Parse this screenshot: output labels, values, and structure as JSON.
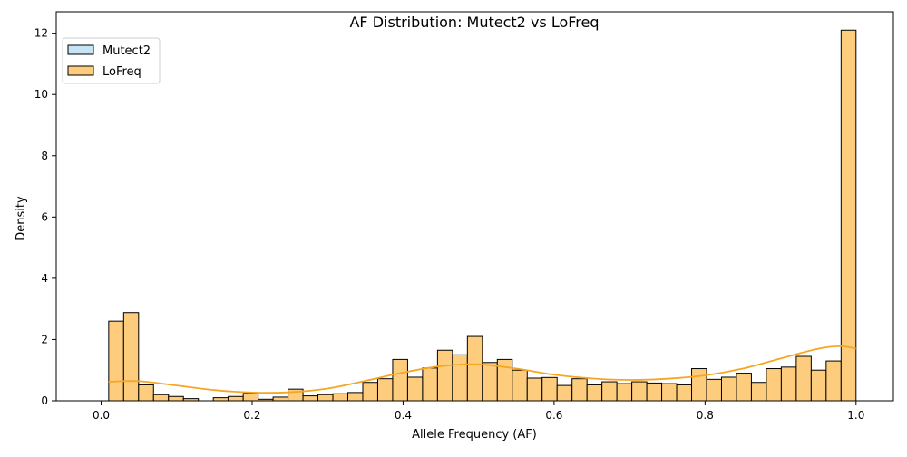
{
  "chart_data": {
    "type": "bar",
    "title": "AF Distribution: Mutect2 vs LoFreq",
    "xlabel": "Allele Frequency (AF)",
    "ylabel": "Density",
    "xlim": [
      -0.0595,
      1.0495
    ],
    "ylim": [
      0,
      12.7
    ],
    "x_ticks": [
      0.0,
      0.2,
      0.4,
      0.6,
      0.8,
      1.0
    ],
    "x_tick_labels": [
      "0.0",
      "0.2",
      "0.4",
      "0.6",
      "0.8",
      "1.0"
    ],
    "y_ticks": [
      0,
      2,
      4,
      6,
      8,
      10,
      12
    ],
    "y_tick_labels": [
      "0",
      "2",
      "4",
      "6",
      "8",
      "10",
      "12"
    ],
    "grid": false,
    "legend_position": "top-left",
    "bin_start": 0.01,
    "bin_width": 0.0198,
    "series": [
      {
        "name": "Mutect2",
        "color": "#c5e4f5",
        "values": []
      },
      {
        "name": "LoFreq",
        "color": "#fdcd7d",
        "kde_color": "#f5a623",
        "values": [
          2.6,
          2.88,
          0.52,
          0.2,
          0.14,
          0.07,
          0.0,
          0.1,
          0.14,
          0.24,
          0.05,
          0.12,
          0.38,
          0.16,
          0.2,
          0.23,
          0.27,
          0.6,
          0.72,
          1.35,
          0.77,
          1.07,
          1.65,
          1.5,
          2.1,
          1.25,
          1.35,
          1.0,
          0.74,
          0.76,
          0.5,
          0.72,
          0.52,
          0.62,
          0.56,
          0.62,
          0.58,
          0.56,
          0.52,
          1.05,
          0.7,
          0.77,
          0.9,
          0.6,
          1.05,
          1.1,
          1.45,
          1.0,
          1.3,
          12.1
        ],
        "kde_x": [
          0.01,
          0.05,
          0.1,
          0.15,
          0.2,
          0.25,
          0.3,
          0.35,
          0.4,
          0.45,
          0.5,
          0.55,
          0.6,
          0.65,
          0.7,
          0.75,
          0.8,
          0.85,
          0.9,
          0.95,
          0.98,
          1.0
        ],
        "kde_y": [
          0.62,
          0.64,
          0.5,
          0.35,
          0.27,
          0.28,
          0.4,
          0.65,
          0.92,
          1.13,
          1.19,
          1.05,
          0.85,
          0.73,
          0.68,
          0.72,
          0.83,
          1.05,
          1.38,
          1.7,
          1.78,
          1.7
        ]
      }
    ]
  }
}
